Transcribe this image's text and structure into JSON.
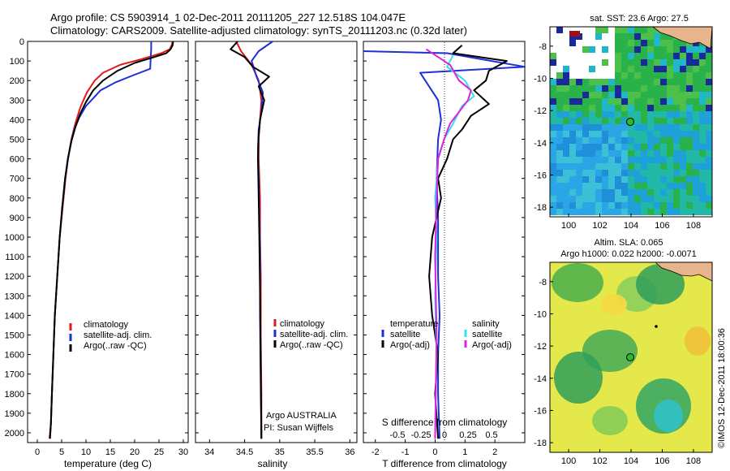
{
  "header": {
    "line1": "Argo profile: CS 5903914_1 02-Dec-2011 20111205_227 12.518S 104.047E",
    "line2": "Climatology: CARS2009. Satellite-adjusted climatology: synTS_20111203.nc (0.32d later)"
  },
  "credit": "©IMOS 12-Dec-2011 18:00:36",
  "colors": {
    "climatology": "#e31a1c",
    "satellite": "#1f2fd6",
    "argo": "#000000",
    "sat_salinity": "#33e0ee",
    "argo_salinity": "#e020e0"
  },
  "chart_data": [
    {
      "type": "line",
      "id": "temperature",
      "xlabel": "temperature (deg C)",
      "ylabel": "",
      "xlim": [
        -2,
        31
      ],
      "ylim": [
        2050,
        0
      ],
      "xticks": [
        "0",
        "5",
        "10",
        "15",
        "20",
        "25",
        "30"
      ],
      "yticks": [
        "0",
        "100",
        "200",
        "300",
        "400",
        "500",
        "600",
        "700",
        "800",
        "900",
        "1000",
        "1100",
        "1200",
        "1300",
        "1400",
        "1500",
        "1600",
        "1700",
        "1800",
        "1900",
        "2000"
      ],
      "legend": [
        "climatology",
        "satellite-adj. clim.",
        "Argo(..raw -QC)"
      ],
      "series": [
        {
          "name": "climatology",
          "color": "#e31a1c",
          "x": [
            27.8,
            27.6,
            27.2,
            25.5,
            21.5,
            17,
            13.5,
            11.8,
            10.2,
            8.8,
            7.8,
            7,
            6.3,
            5.8,
            5.2,
            4.6,
            4.1,
            3.6,
            3.3,
            3.0,
            2.8,
            2.5
          ],
          "y": [
            0,
            20,
            40,
            60,
            90,
            120,
            160,
            200,
            260,
            340,
            420,
            500,
            600,
            700,
            850,
            1000,
            1200,
            1400,
            1600,
            1800,
            1950,
            2030
          ]
        },
        {
          "name": "satellite-adj. clim.",
          "color": "#1f2fd6",
          "x": [
            23.4,
            23.4,
            23.3,
            23.2,
            20,
            16,
            13,
            11.5,
            10,
            8.6,
            7.6,
            6.9,
            6.2,
            5.7,
            5.1,
            4.6,
            4.1,
            3.6,
            3.3,
            3.0,
            2.8,
            2.6
          ],
          "y": [
            0,
            40,
            80,
            140,
            170,
            210,
            250,
            290,
            330,
            390,
            450,
            520,
            610,
            710,
            860,
            1000,
            1200,
            1400,
            1600,
            1800,
            1950,
            2030
          ]
        },
        {
          "name": "Argo(..raw -QC)",
          "color": "#000000",
          "x": [
            27.9,
            27.8,
            27.4,
            26.5,
            24,
            20,
            16.5,
            13.5,
            11.5,
            10,
            8.8,
            7.8,
            7,
            6.3,
            5.7,
            5.1,
            4.6,
            4.1,
            3.6,
            3.3,
            3.0,
            2.8,
            2.6
          ],
          "y": [
            0,
            20,
            40,
            60,
            80,
            110,
            150,
            200,
            250,
            310,
            370,
            440,
            510,
            600,
            700,
            850,
            1000,
            1200,
            1400,
            1600,
            1800,
            1950,
            2030
          ]
        }
      ]
    },
    {
      "type": "line",
      "id": "salinity",
      "xlabel": "salinity",
      "ylabel": "",
      "xlim": [
        33.8,
        36.1
      ],
      "ylim": [
        2050,
        0
      ],
      "xticks": [
        "34",
        "34.5",
        "35",
        "35.5",
        "36"
      ],
      "legend": [
        "climatology",
        "satellite-adj. clim.",
        "Argo(..raw -QC)"
      ],
      "annotations": [
        "Argo AUSTRALIA",
        "PI: Susan Wijffels"
      ],
      "series": [
        {
          "name": "climatology",
          "color": "#e31a1c",
          "x": [
            34.38,
            34.45,
            34.6,
            34.7,
            34.74,
            34.72,
            34.7,
            34.7,
            34.72,
            34.72,
            34.73,
            34.73,
            34.74,
            34.74
          ],
          "y": [
            0,
            50,
            120,
            200,
            300,
            400,
            500,
            600,
            800,
            1000,
            1200,
            1500,
            1800,
            2030
          ]
        },
        {
          "name": "satellite-adj. clim.",
          "color": "#1f2fd6",
          "x": [
            34.9,
            34.7,
            34.6,
            34.67,
            34.76,
            34.74,
            34.7,
            34.69,
            34.7,
            34.71,
            34.72,
            34.72,
            34.73,
            34.74
          ],
          "y": [
            0,
            50,
            100,
            180,
            260,
            360,
            450,
            550,
            700,
            900,
            1100,
            1400,
            1800,
            2030
          ]
        },
        {
          "name": "Argo(..raw -QC)",
          "color": "#000000",
          "x": [
            34.4,
            34.3,
            34.5,
            34.62,
            34.85,
            34.7,
            34.78,
            34.72,
            34.7,
            34.69,
            34.7,
            34.71,
            34.72,
            34.73,
            34.74
          ],
          "y": [
            0,
            40,
            80,
            130,
            180,
            230,
            300,
            400,
            480,
            600,
            800,
            1000,
            1300,
            1700,
            2030
          ]
        }
      ]
    },
    {
      "type": "line",
      "id": "difference",
      "xlabel": "T difference from climatology",
      "xlabel_top": "S difference from climatology",
      "xlim": [
        -2.4,
        3
      ],
      "ylim": [
        2050,
        0
      ],
      "xticks": [
        "-2",
        "-1",
        "0",
        "1",
        "2"
      ],
      "xticks_top": [
        "-0.5",
        "-0.25",
        "0",
        "0.25",
        "0.5"
      ],
      "legend_temperature": [
        "temperature",
        "satellite",
        "Argo(-adj)"
      ],
      "legend_salinity": [
        "salinity",
        "satellite",
        "Argo(-adj)"
      ],
      "series": [
        {
          "name": "satellite",
          "color": "#1f2fd6",
          "x": [
            -2.4,
            0.4,
            3.0,
            -0.5,
            0.1,
            0.2,
            0.1,
            0.05,
            0.1,
            0.1,
            0.15,
            0.1,
            0.1,
            0.15
          ],
          "y": [
            50,
            60,
            130,
            160,
            300,
            400,
            500,
            700,
            900,
            1200,
            1400,
            1600,
            1800,
            2030
          ]
        },
        {
          "name": "Argo(-adj)",
          "color": "#000000",
          "x": [
            0.9,
            0.6,
            2.4,
            1.8,
            1.7,
            1.3,
            1.8,
            1.2,
            0.9,
            0.6,
            0.4,
            0.1,
            0.2,
            -0.1,
            -0.2,
            -0.1,
            0.1,
            0.0,
            0.1
          ],
          "y": [
            20,
            60,
            100,
            150,
            200,
            250,
            320,
            380,
            450,
            500,
            600,
            700,
            800,
            1000,
            1200,
            1400,
            1600,
            1800,
            2030
          ]
        },
        {
          "name": "satellite salinity",
          "color": "#33e0ee",
          "x": [
            0.6,
            0.4,
            1.0,
            1.3,
            0.9,
            0.6,
            0.3,
            0.1,
            0.0,
            0.05,
            0.0,
            0.05,
            0.0
          ],
          "y": [
            70,
            130,
            200,
            280,
            330,
            420,
            500,
            600,
            800,
            1000,
            1300,
            1600,
            2030
          ]
        },
        {
          "name": "Argo(-adj) salinity",
          "color": "#e020e0",
          "x": [
            -0.3,
            0.5,
            0.8,
            1.2,
            1.1,
            0.8,
            0.5,
            0.3,
            0.1,
            0.05,
            0.0,
            0.05,
            0.0
          ],
          "y": [
            40,
            120,
            200,
            250,
            300,
            360,
            420,
            500,
            600,
            800,
            1100,
            1500,
            2030
          ]
        }
      ]
    },
    {
      "type": "heatmap",
      "id": "sst-map",
      "title": "sat. SST: 23.6  Argo: 27.5",
      "xlim": [
        98.8,
        109.2
      ],
      "ylim": [
        -18.6,
        -6.8
      ],
      "xticks": [
        "100",
        "102",
        "104",
        "106",
        "108"
      ],
      "yticks": [
        "-8",
        "-10",
        "-12",
        "-14",
        "-16",
        "-18"
      ],
      "argo_position": [
        104.05,
        -12.52
      ]
    },
    {
      "type": "heatmap",
      "id": "sla-map",
      "title": "Altim. SLA: 0.065",
      "subtitle": "Argo h1000: 0.022  h2000: -0.0071",
      "xlim": [
        98.8,
        109.2
      ],
      "ylim": [
        -18.6,
        -6.8
      ],
      "xticks": [
        "100",
        "102",
        "104",
        "106",
        "108"
      ],
      "yticks": [
        "-8",
        "-10",
        "-12",
        "-14",
        "-16",
        "-18"
      ],
      "argo_position": [
        104.05,
        -12.52
      ]
    }
  ]
}
